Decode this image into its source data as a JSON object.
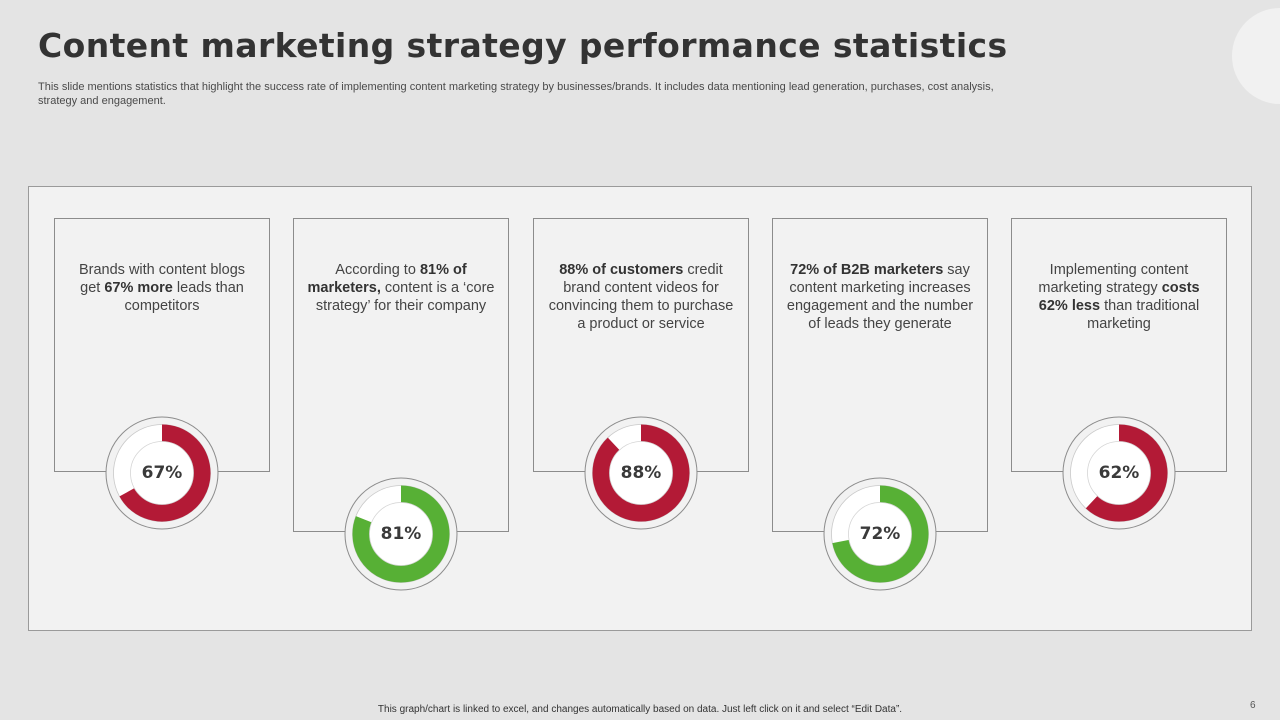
{
  "title": "Content marketing strategy performance statistics",
  "subtitle": "This slide mentions statistics that highlight the success rate of implementing content marketing strategy by businesses/brands. It includes data mentioning lead generation, purchases, cost analysis, strategy and engagement.",
  "footer_note": "This graph/chart is linked to excel, and changes automatically based on data. Just left click on it and select “Edit Data”.",
  "page_number": "6",
  "colors": {
    "red": "#b31a36",
    "green": "#57b035",
    "track": "#f2f2f2"
  },
  "cards": [
    {
      "segments": [
        {
          "text": "Brands with content blogs get ",
          "bold": false
        },
        {
          "text": "67% more",
          "bold": true
        },
        {
          "text": " leads than competitors",
          "bold": false
        }
      ]
    },
    {
      "segments": [
        {
          "text": "According to ",
          "bold": false
        },
        {
          "text": "81% of marketers,",
          "bold": true
        },
        {
          "text": " content is a ‘core strategy’ for their company",
          "bold": false
        }
      ]
    },
    {
      "segments": [
        {
          "text": "88% of customers",
          "bold": true
        },
        {
          "text": " credit brand content videos for convincing them to purchase a product or service",
          "bold": false
        }
      ]
    },
    {
      "segments": [
        {
          "text": "72% of B2B marketers",
          "bold": true
        },
        {
          "text": " say content marketing increases engagement and the number of leads they generate",
          "bold": false
        }
      ]
    },
    {
      "segments": [
        {
          "text": "Implementing content marketing strategy ",
          "bold": false
        },
        {
          "text": "costs 62% less",
          "bold": true
        },
        {
          "text": " than traditional marketing",
          "bold": false
        }
      ]
    }
  ],
  "chart_data": [
    {
      "type": "pie",
      "label": "67%",
      "values": [
        67,
        33
      ],
      "color": "red"
    },
    {
      "type": "pie",
      "label": "81%",
      "values": [
        81,
        19
      ],
      "color": "green"
    },
    {
      "type": "pie",
      "label": "88%",
      "values": [
        88,
        12
      ],
      "color": "red"
    },
    {
      "type": "pie",
      "label": "72%",
      "values": [
        72,
        28
      ],
      "color": "green"
    },
    {
      "type": "pie",
      "label": "62%",
      "values": [
        62,
        38
      ],
      "color": "red"
    }
  ]
}
